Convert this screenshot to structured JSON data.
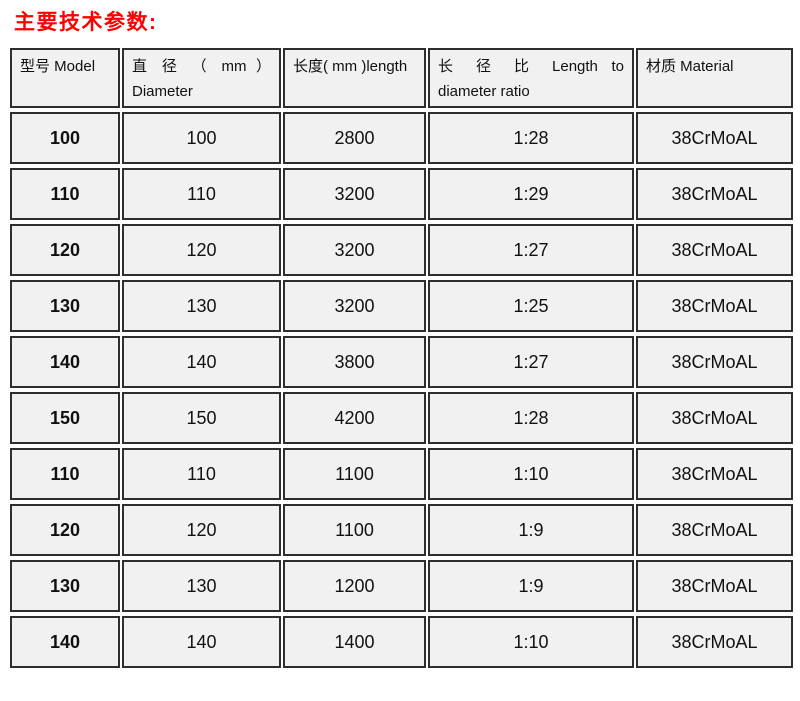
{
  "page": {
    "title": "主要技术参数:"
  },
  "colors": {
    "title_red": "#fe0000",
    "cell_background": "#f1f1f1",
    "border": "#2e2e2e",
    "text": "#111111",
    "page_background": "#ffffff"
  },
  "table": {
    "headers": [
      {
        "line1": "型号 Model",
        "line2": ""
      },
      {
        "line1": "直 径 （ mm ）",
        "line2": "Diameter"
      },
      {
        "line1": "长度( mm )length",
        "line2": ""
      },
      {
        "line1": "长 径 比 Length to",
        "line2": "diameter ratio"
      },
      {
        "line1": "材质 Material",
        "line2": ""
      }
    ],
    "rows": [
      [
        "100",
        "100",
        "2800",
        "1:28",
        "38CrMoAL"
      ],
      [
        "110",
        "110",
        "3200",
        "1:29",
        "38CrMoAL"
      ],
      [
        "120",
        "120",
        "3200",
        "1:27",
        "38CrMoAL"
      ],
      [
        "130",
        "130",
        "3200",
        "1:25",
        "38CrMoAL"
      ],
      [
        "140",
        "140",
        "3800",
        "1:27",
        "38CrMoAL"
      ],
      [
        "150",
        "150",
        "4200",
        "1:28",
        "38CrMoAL"
      ],
      [
        "110",
        "110",
        "1100",
        "1:10",
        "38CrMoAL"
      ],
      [
        "120",
        "120",
        "1100",
        "1:9",
        "38CrMoAL"
      ],
      [
        "130",
        "130",
        "1200",
        "1:9",
        "38CrMoAL"
      ],
      [
        "140",
        "140",
        "1400",
        "1:10",
        "38CrMoAL"
      ]
    ]
  }
}
